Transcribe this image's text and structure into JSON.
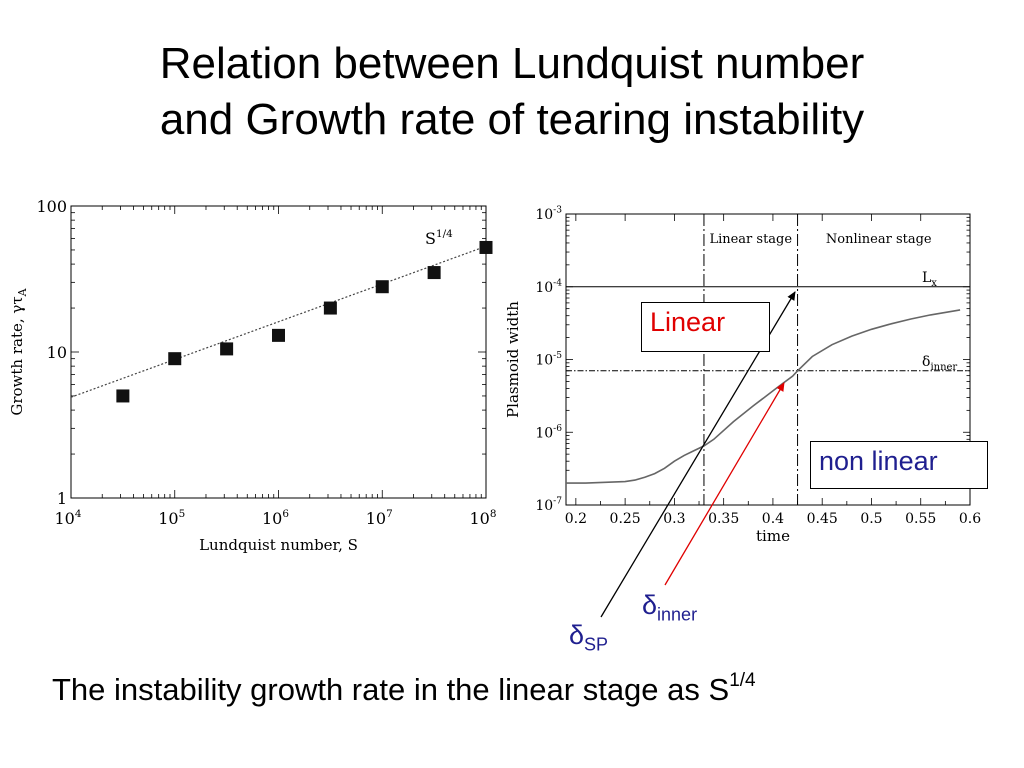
{
  "slide": {
    "title_line1": "Relation between Lundquist number",
    "title_line2": "and Growth rate of tearing instability",
    "caption_text": "The instability growth rate in the linear stage as S",
    "caption_sup": "1/4"
  },
  "annotations": {
    "linear_box": "Linear",
    "nonlinear_box": "non linear",
    "delta_sp_symbol": "δ",
    "delta_sp_sub": "SP",
    "delta_inner_symbol": "δ",
    "delta_inner_sub": "inner",
    "arrow_sp_color": "#000000",
    "arrow_inner_color": "#e00000"
  },
  "chart_data": [
    {
      "type": "scatter",
      "xlabel": "Lundquist number, S",
      "ylabel": "Growth rate, γτ",
      "ylabel_sub": "A",
      "x_scale": "log",
      "y_scale": "log",
      "xlim": [
        10000,
        100000000
      ],
      "ylim": [
        1,
        100
      ],
      "x_ticks": [
        {
          "value": 10000,
          "base": "10",
          "exp": "4"
        },
        {
          "value": 100000,
          "base": "10",
          "exp": "5"
        },
        {
          "value": 1000000,
          "base": "10",
          "exp": "6"
        },
        {
          "value": 10000000,
          "base": "10",
          "exp": "7"
        },
        {
          "value": 100000000,
          "base": "10",
          "exp": "8"
        }
      ],
      "y_ticks": [
        {
          "value": 1,
          "label": "1"
        },
        {
          "value": 10,
          "label": "10"
        },
        {
          "value": 100,
          "label": "100"
        }
      ],
      "points": {
        "x": [
          31623,
          100000,
          316228,
          1000000,
          3162278,
          10000000,
          31622777,
          100000000
        ],
        "y": [
          5.0,
          9.0,
          10.5,
          13.0,
          20.0,
          28.0,
          35.0,
          52.0
        ]
      },
      "fit_line": {
        "label": "S",
        "label_sup": "1/4",
        "y_at_xmin": 4.9,
        "y_at_xmax": 53.0,
        "style": "dotted"
      },
      "marker_color": "#111111"
    },
    {
      "type": "line",
      "xlabel": "time",
      "ylabel": "Plasmoid width",
      "x_scale": "linear",
      "y_scale": "log",
      "xlim": [
        0.19,
        0.6
      ],
      "ylim": [
        1e-07,
        0.001
      ],
      "x_ticks": [
        "0.2",
        "0.25",
        "0.3",
        "0.35",
        "0.4",
        "0.45",
        "0.5",
        "0.55",
        "0.6"
      ],
      "y_ticks": [
        {
          "value": 1e-07,
          "base": "10",
          "exp": "-7"
        },
        {
          "value": 1e-06,
          "base": "10",
          "exp": "-6"
        },
        {
          "value": 1e-05,
          "base": "10",
          "exp": "-5"
        },
        {
          "value": 0.0001,
          "base": "10",
          "exp": "-4"
        },
        {
          "value": 0.001,
          "base": "10",
          "exp": "-3"
        }
      ],
      "series": [
        {
          "x": [
            0.19,
            0.21,
            0.23,
            0.25,
            0.26,
            0.27,
            0.28,
            0.29,
            0.3,
            0.31,
            0.32,
            0.33,
            0.34,
            0.36,
            0.38,
            0.4,
            0.41,
            0.42,
            0.425,
            0.44,
            0.46,
            0.48,
            0.5,
            0.52,
            0.54,
            0.56,
            0.59
          ],
          "y": [
            2e-07,
            2e-07,
            2.05e-07,
            2.1e-07,
            2.2e-07,
            2.4e-07,
            2.7e-07,
            3.2e-07,
            4e-07,
            4.8e-07,
            5.6e-07,
            6.5e-07,
            8e-07,
            1.4e-06,
            2.3e-06,
            3.7e-06,
            4.7e-06,
            5.9e-06,
            7e-06,
            1.1e-05,
            1.6e-05,
            2.1e-05,
            2.6e-05,
            3.1e-05,
            3.6e-05,
            4.1e-05,
            4.8e-05
          ]
        }
      ],
      "stage_lines": {
        "x": [
          0.33,
          0.425
        ]
      },
      "stage_labels": [
        "Linear stage",
        "Nonlinear stage"
      ],
      "hlines": [
        {
          "y": 0.0001,
          "label": "L",
          "label_sub": "x",
          "style": "solid"
        },
        {
          "y": 7e-06,
          "label": "δ",
          "label_sub": "inner",
          "style": "dashdot"
        }
      ],
      "line_color": "#666666"
    }
  ]
}
